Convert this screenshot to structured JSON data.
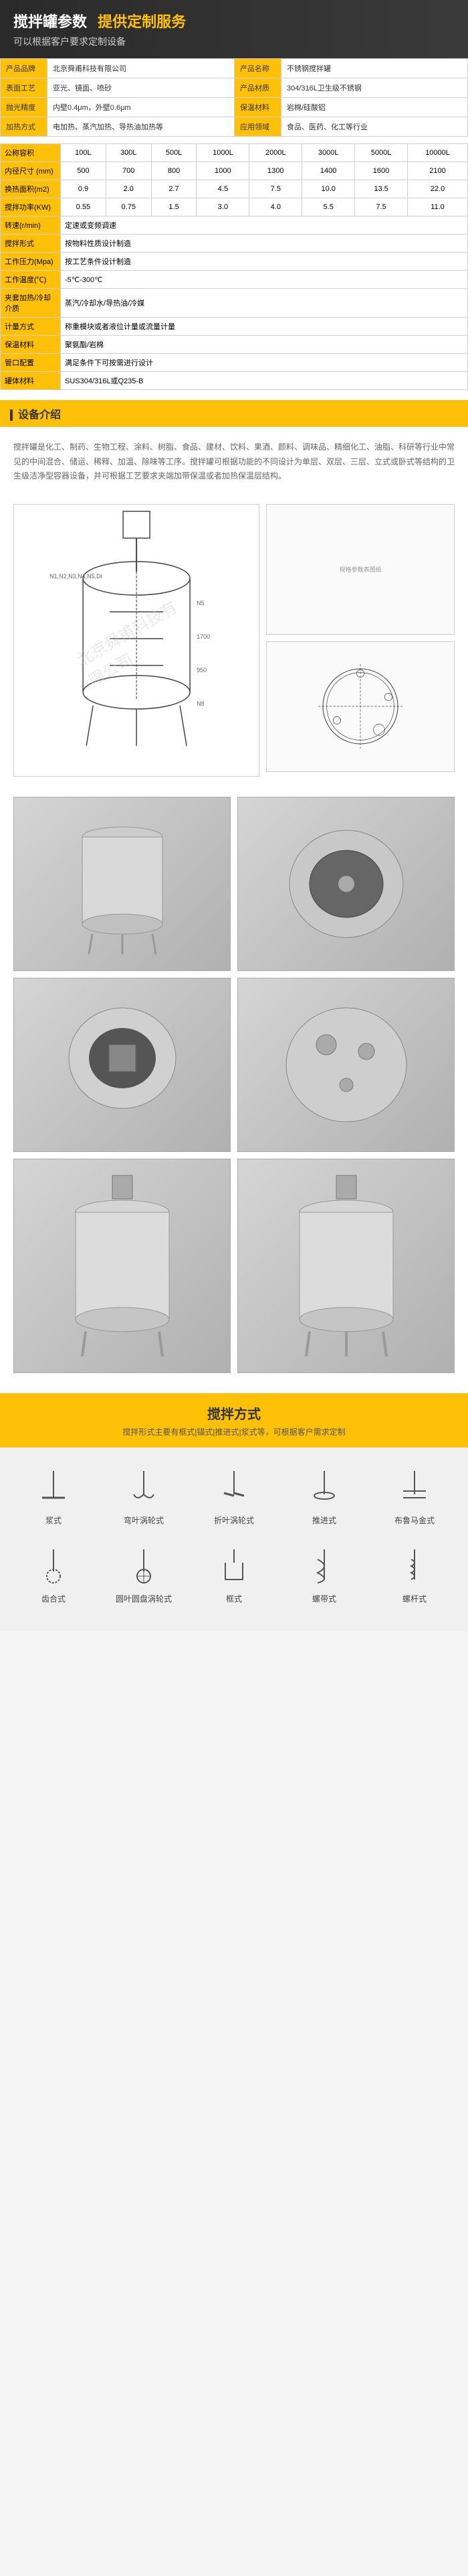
{
  "header": {
    "title_main": "搅拌罐参数",
    "title_highlight": "提供定制服务",
    "subtitle": "可以根据客户要求定制设备"
  },
  "spec_rows": [
    {
      "l1": "产品品牌",
      "v1": "北京舜甫科技有限公司",
      "l2": "产品名称",
      "v2": "不锈钢搅拌罐"
    },
    {
      "l1": "表面工艺",
      "v1": "亚光、镜面、喷砂",
      "l2": "产品材质",
      "v2": "304/316L卫生级不锈钢"
    },
    {
      "l1": "抛光精度",
      "v1": "内壁0.4μm，外壁0.6μm",
      "l2": "保温材料",
      "v2": "岩棉/硅酸铝"
    },
    {
      "l1": "加热方式",
      "v1": "电加热、蒸汽加热、导热油加热等",
      "l2": "应用领域",
      "v2": "食品、医药、化工等行业"
    }
  ],
  "size_table": {
    "rows": [
      {
        "label": "公称容积",
        "vals": [
          "100L",
          "300L",
          "500L",
          "1000L",
          "2000L",
          "3000L",
          "5000L",
          "10000L"
        ]
      },
      {
        "label": "内径尺寸 (mm)",
        "vals": [
          "500",
          "700",
          "800",
          "1000",
          "1300",
          "1400",
          "1600",
          "2100"
        ]
      },
      {
        "label": "换热面积(m2)",
        "vals": [
          "0.9",
          "2.0",
          "2.7",
          "4.5",
          "7.5",
          "10.0",
          "13.5",
          "22.0"
        ]
      },
      {
        "label": "搅拌功率(KW)",
        "vals": [
          "0.55",
          "0.75",
          "1.5",
          "3.0",
          "4.0",
          "5.5",
          "7.5",
          "11.0"
        ]
      },
      {
        "label": "转速(r/min)",
        "vals": [
          "定速或变频调速",
          "",
          "",
          "",
          "",
          "",
          "",
          ""
        ]
      },
      {
        "label": "搅拌形式",
        "vals": [
          "按物料性质设计制造",
          "",
          "",
          "",
          "",
          "",
          "",
          ""
        ]
      },
      {
        "label": "工作压力(Mpa)",
        "vals": [
          "按工艺条件设计制造",
          "",
          "",
          "",
          "",
          "",
          "",
          ""
        ]
      },
      {
        "label": "工作温度(℃)",
        "vals": [
          "-5℃-300℃",
          "",
          "",
          "",
          "",
          "",
          "",
          ""
        ]
      },
      {
        "label": "夹套加热/冷却介质",
        "vals": [
          "蒸汽/冷却水/导热油/冷媒",
          "",
          "",
          "",
          "",
          "",
          "",
          ""
        ]
      },
      {
        "label": "计量方式",
        "vals": [
          "称重模块或者液位计量或流量计量",
          "",
          "",
          "",
          "",
          "",
          "",
          ""
        ]
      },
      {
        "label": "保温材料",
        "vals": [
          "聚氨酯/岩棉",
          "",
          "",
          "",
          "",
          "",
          "",
          ""
        ]
      },
      {
        "label": "管口配置",
        "vals": [
          "满足条件下可按需进行设计",
          "",
          "",
          "",
          "",
          "",
          "",
          ""
        ]
      },
      {
        "label": "罐体材料",
        "vals": [
          "SUS304/316L或Q235-B",
          "",
          "",
          "",
          "",
          "",
          "",
          ""
        ]
      }
    ]
  },
  "intro_title": "设备介绍",
  "intro_text": "搅拌罐是化工、制药、生物工程、涂料、树脂、食品、建材、饮料、果酒、颜料、调味品、精细化工、油脂、科研等行业中常见的中间混合、储运、稀释、加温、除味等工序。搅拌罐可根据功能的不同设计为单层、双层、三层、立式或卧式等结构的卫生级洁净型容器设备，并可根据工艺要求夹端加带保温或者加热保温层结构。",
  "mix_header": {
    "title": "搅拌方式",
    "sub": "搅拌形式主要有框式|锚式|推进式|浆式等，可根据客户需求定制"
  },
  "mix_types": [
    "浆式",
    "弯叶涡轮式",
    "折叶涡轮式",
    "推进式",
    "布鲁马金式",
    "齿合式",
    "圆叶圆盘涡轮式",
    "框式",
    "螺带式",
    "螺杆式"
  ],
  "style": {
    "accent": "#ffc107",
    "dark": "#2a2a2a",
    "border": "#d0d0d0",
    "text": "#333333"
  },
  "watermark": "北京舜甫科技有限公司"
}
